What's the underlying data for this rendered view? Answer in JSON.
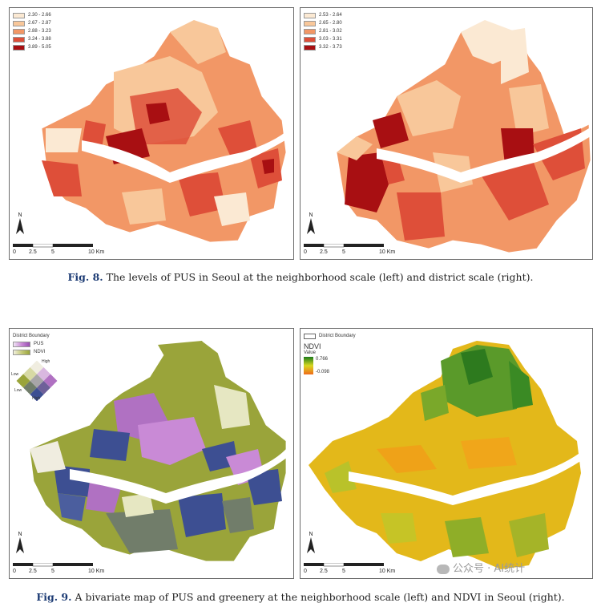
{
  "fig8": {
    "left": {
      "legend": [
        {
          "label": "2.30 - 2.66",
          "color": "#fbe9d3"
        },
        {
          "label": "2.67 - 2.87",
          "color": "#f8c79a"
        },
        {
          "label": "2.88 - 3.23",
          "color": "#f29766"
        },
        {
          "label": "3.24 - 3.88",
          "color": "#de4f39"
        },
        {
          "label": "3.89 - 5.05",
          "color": "#a80f12"
        }
      ]
    },
    "right": {
      "legend": [
        {
          "label": "2.53 - 2.64",
          "color": "#fbe9d3"
        },
        {
          "label": "2.65 - 2.80",
          "color": "#f8c79a"
        },
        {
          "label": "2.81 - 3.02",
          "color": "#f29766"
        },
        {
          "label": "3.03 - 3.31",
          "color": "#de4f39"
        },
        {
          "label": "3.32 - 3.73",
          "color": "#a80f12"
        }
      ]
    },
    "north_label": "N",
    "scale": {
      "t0": "0",
      "t1": "2.5",
      "t2": "5",
      "t3": "10 Km"
    },
    "caption_label": "Fig. 8.",
    "caption_text": "The levels of PUS in Seoul at the neighborhood scale (left) and district scale (right)."
  },
  "fig9": {
    "left": {
      "boundary_label": "District Boundary",
      "pus_label": "PUS",
      "ndvi_label": "NDVI",
      "high_top": "High",
      "low_left": "Low",
      "low_bottom": "Low",
      "high_bottom": "High"
    },
    "right": {
      "boundary_label": "District Boundary",
      "ndvi_title": "NDVI",
      "value_title": "Value",
      "max_value": "0.766",
      "min_value": "-0.098"
    },
    "north_label": "N",
    "scale": {
      "t0": "0",
      "t1": "2.5",
      "t2": "5",
      "t3": "10 Km"
    },
    "caption_label": "Fig. 9.",
    "caption_text": "A bivariate map of PUS and greenery at the neighborhood scale (left) and NDVI in Seoul (right)."
  },
  "watermark": "公众号 · AI统计"
}
